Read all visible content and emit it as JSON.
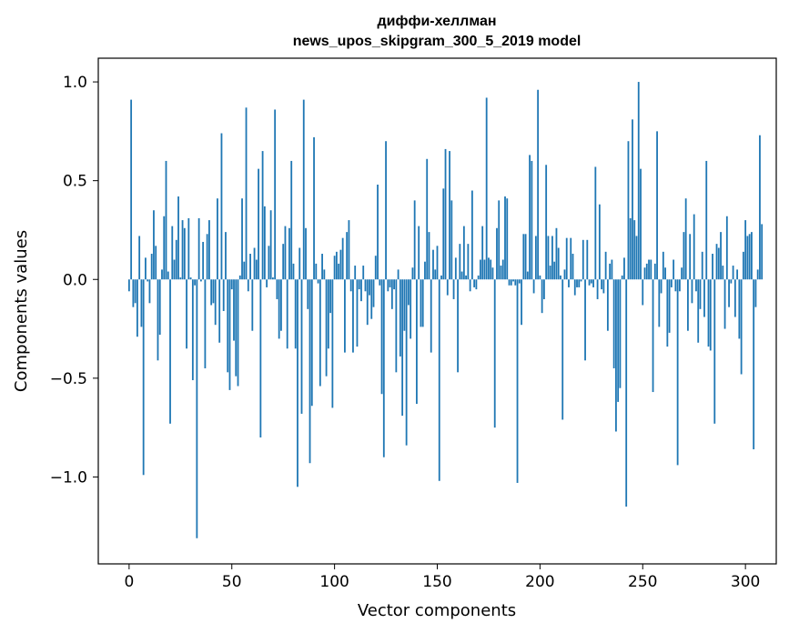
{
  "chart_data": {
    "type": "bar",
    "title_line1": "диффи-хеллман",
    "title_line2": "news_upos_skipgram_300_5_2019 model",
    "xlabel": "Vector components",
    "ylabel": "Components values",
    "xlim": [
      -15,
      315
    ],
    "ylim": [
      -1.44,
      1.12
    ],
    "xticks": [
      0,
      50,
      100,
      150,
      200,
      250,
      300
    ],
    "xtick_labels": [
      "0",
      "50",
      "100",
      "150",
      "200",
      "250",
      "300"
    ],
    "yticks": [
      -1.0,
      -0.5,
      0.0,
      0.5,
      1.0
    ],
    "ytick_labels": [
      "−1.0",
      "−0.5",
      "0.0",
      "0.5",
      "1.0"
    ],
    "bar_color": "#1f77b4",
    "values": [
      -0.06,
      0.91,
      -0.14,
      -0.12,
      -0.29,
      0.22,
      -0.24,
      -0.99,
      0.11,
      -0.01,
      -0.12,
      0.13,
      0.35,
      0.17,
      -0.41,
      -0.28,
      0.05,
      0.32,
      0.6,
      0.04,
      -0.73,
      0.27,
      0.1,
      0.2,
      0.42,
      0.01,
      0.3,
      0.26,
      -0.35,
      0.31,
      0.01,
      -0.51,
      -0.03,
      -1.31,
      0.31,
      -0.01,
      0.19,
      -0.45,
      0.23,
      0.3,
      -0.13,
      -0.12,
      -0.23,
      0.41,
      -0.32,
      0.74,
      -0.16,
      0.24,
      -0.47,
      -0.56,
      -0.05,
      -0.31,
      -0.49,
      -0.54,
      0.02,
      0.41,
      0.09,
      0.87,
      -0.06,
      0.13,
      -0.26,
      0.16,
      0.1,
      0.56,
      -0.8,
      0.65,
      0.37,
      -0.04,
      0.17,
      0.35,
      0.01,
      0.86,
      -0.1,
      -0.3,
      -0.26,
      0.18,
      0.27,
      -0.35,
      0.26,
      0.6,
      0.08,
      -0.35,
      -1.05,
      0.16,
      -0.68,
      0.91,
      0.26,
      -0.15,
      -0.93,
      -0.64,
      0.72,
      0.08,
      -0.02,
      -0.54,
      0.13,
      0.05,
      -0.49,
      -0.35,
      -0.17,
      -0.65,
      0.12,
      0.14,
      0.08,
      0.15,
      0.21,
      -0.37,
      0.24,
      0.3,
      -0.06,
      -0.37,
      0.07,
      -0.34,
      -0.05,
      -0.11,
      0.07,
      -0.06,
      -0.23,
      -0.08,
      -0.2,
      -0.14,
      0.12,
      0.48,
      -0.03,
      -0.58,
      -0.9,
      0.7,
      -0.06,
      -0.04,
      -0.15,
      -0.05,
      -0.47,
      0.05,
      -0.39,
      -0.69,
      -0.26,
      -0.84,
      -0.13,
      -0.3,
      0.06,
      0.4,
      -0.63,
      0.27,
      -0.24,
      -0.24,
      0.09,
      0.61,
      0.24,
      -0.37,
      0.15,
      0.05,
      0.17,
      -1.02,
      0.02,
      0.46,
      0.66,
      -0.08,
      0.65,
      0.4,
      -0.1,
      0.11,
      -0.47,
      0.18,
      0.04,
      0.27,
      0.02,
      0.18,
      -0.06,
      0.45,
      -0.04,
      -0.05,
      0.02,
      0.1,
      0.27,
      0.1,
      0.92,
      0.11,
      0.1,
      0.06,
      -0.75,
      0.26,
      0.4,
      0.07,
      0.1,
      0.42,
      0.41,
      -0.03,
      -0.03,
      -0.01,
      -0.03,
      -1.03,
      -0.02,
      -0.23,
      0.23,
      0.23,
      0.04,
      0.63,
      0.6,
      -0.07,
      0.22,
      0.96,
      0.02,
      -0.17,
      -0.1,
      0.58,
      0.22,
      0.07,
      0.22,
      0.09,
      0.26,
      0.16,
      0.02,
      -0.71,
      0.05,
      0.21,
      -0.04,
      0.21,
      0.13,
      -0.08,
      -0.04,
      -0.04,
      -0.01,
      0.2,
      -0.41,
      0.2,
      -0.03,
      -0.02,
      -0.04,
      0.57,
      -0.1,
      0.38,
      -0.05,
      -0.07,
      0.14,
      -0.26,
      0.08,
      0.1,
      -0.45,
      -0.77,
      -0.62,
      -0.55,
      0.02,
      0.11,
      -1.15,
      0.7,
      0.31,
      0.81,
      0.3,
      0.22,
      1.0,
      0.56,
      -0.13,
      0.06,
      0.08,
      0.1,
      0.1,
      -0.57,
      0.08,
      0.75,
      -0.24,
      -0.07,
      0.14,
      0.06,
      -0.34,
      -0.27,
      -0.04,
      0.1,
      -0.06,
      -0.94,
      -0.06,
      0.06,
      0.24,
      0.41,
      -0.26,
      0.23,
      -0.12,
      0.33,
      -0.06,
      -0.32,
      -0.15,
      0.14,
      -0.19,
      0.6,
      -0.34,
      -0.36,
      0.13,
      -0.73,
      0.18,
      0.16,
      0.24,
      0.07,
      -0.25,
      0.32,
      -0.14,
      -0.02,
      0.07,
      -0.19,
      0.05,
      -0.3,
      -0.48,
      0.14,
      0.3,
      0.22,
      0.23,
      0.24,
      -0.86,
      -0.14,
      0.05,
      0.73,
      0.28
    ]
  }
}
